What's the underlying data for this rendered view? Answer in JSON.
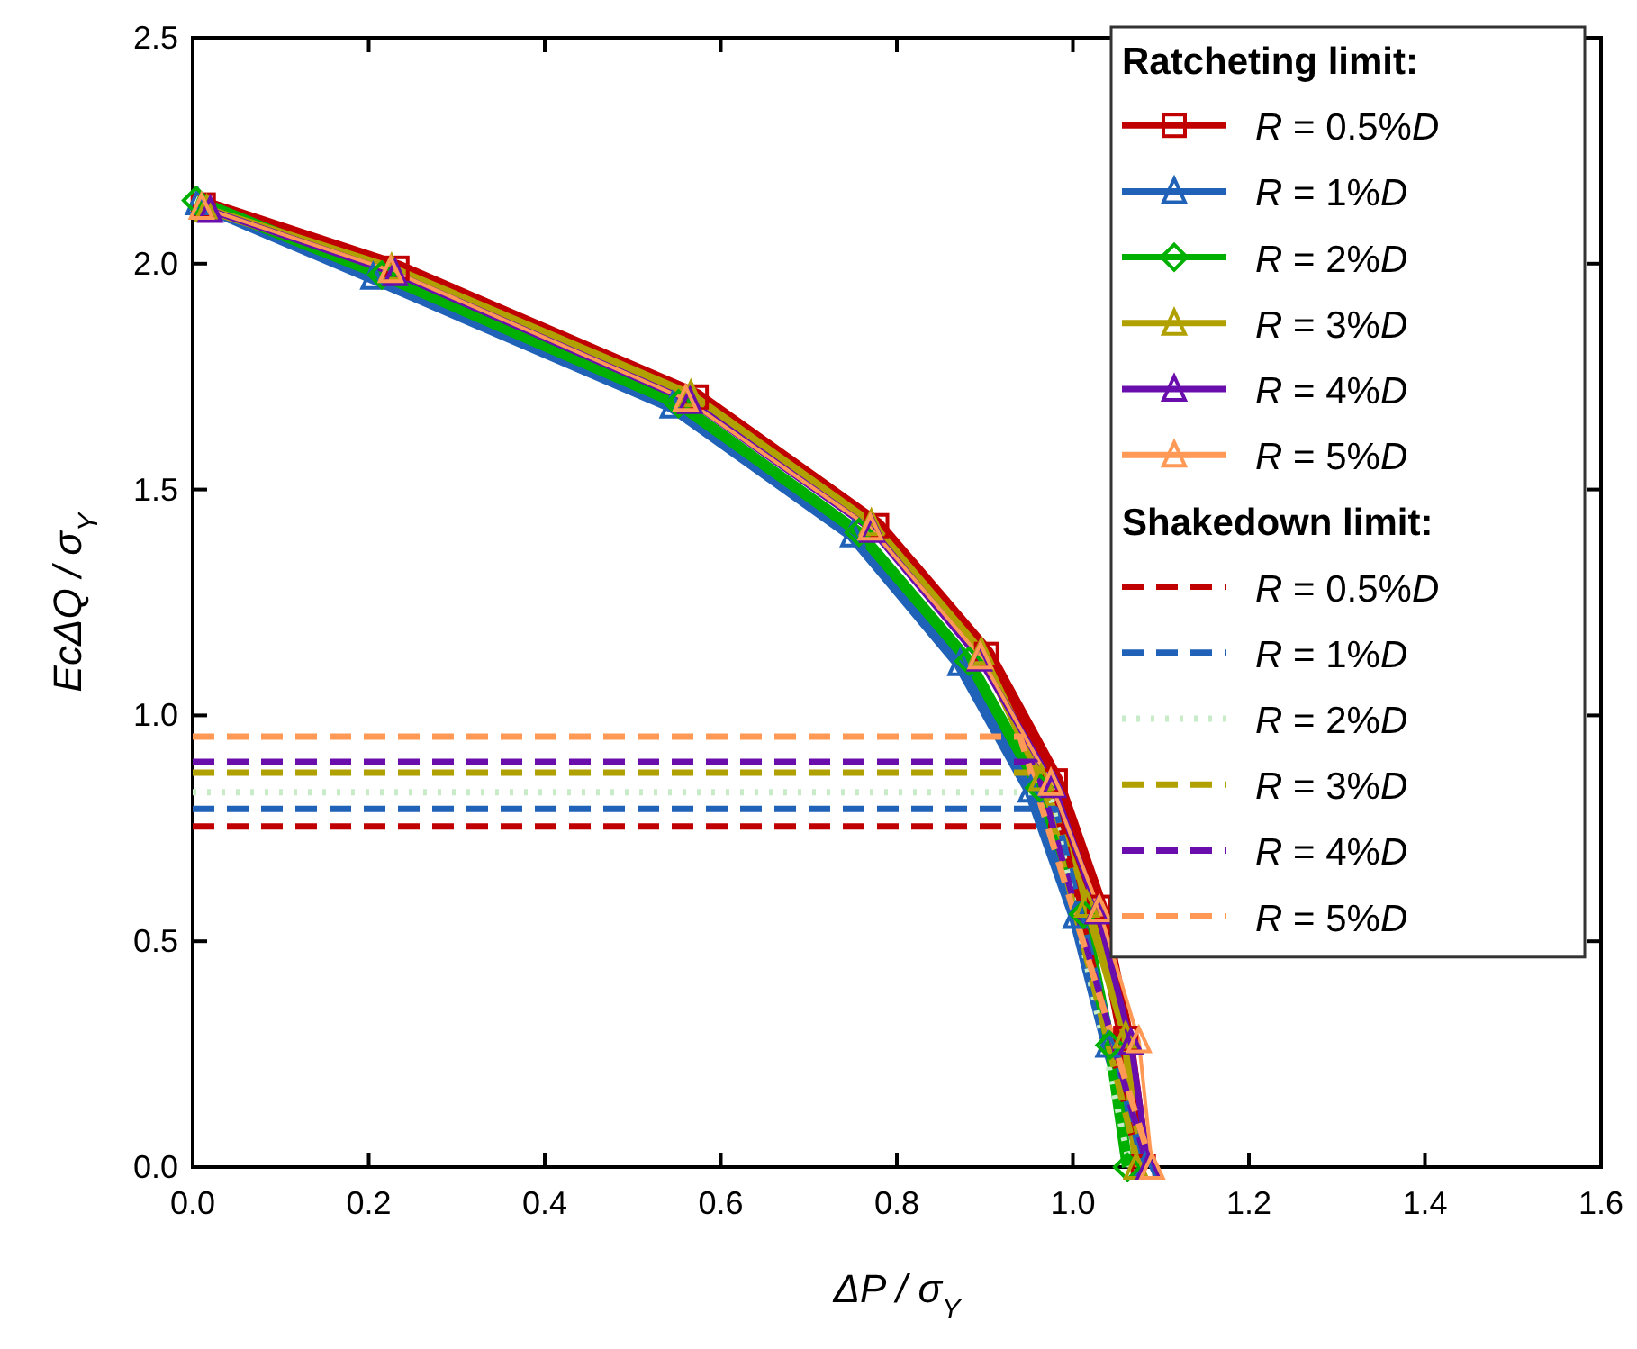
{
  "chart_data": {
    "type": "line",
    "xlabel": "ΔP / σ$_{Y}$",
    "ylabel": "EcΔQ / σ$_{Y}$",
    "xlim": [
      0,
      1.6
    ],
    "ylim": [
      0,
      2.5
    ],
    "xticks": [
      {
        "value": 0,
        "label": "0.0"
      },
      0.2,
      0.4,
      0.6,
      0.8,
      {
        "value": 1,
        "label": "1.0"
      },
      1.2,
      1.4,
      1.6
    ],
    "yticks": [
      {
        "value": 0,
        "label": "0.0"
      },
      0.5,
      {
        "value": 1,
        "label": "1.0"
      },
      1.5,
      {
        "value": 2,
        "label": "2.0"
      },
      2.5
    ],
    "grid": false,
    "legend": "top right",
    "legend_title": "Ratcheting limit:",
    "annotations": [
      "Shakedown limit:"
    ],
    "series": [
      {
        "name": "R = 0.5%D",
        "color": "#c00000",
        "marker": "square",
        "line_style": "solid",
        "x": [
          0.012,
          0.232,
          0.572,
          0.777,
          0.902,
          0.98,
          1.03,
          1.06,
          1.08
        ],
        "values": [
          2.13,
          1.99,
          1.705,
          1.42,
          1.135,
          0.855,
          0.575,
          0.285,
          0
        ]
      },
      {
        "name": "R = 1%D",
        "color": "#1f62b8",
        "marker": "triangle",
        "line_style": "solid",
        "x": [
          0.006,
          0.205,
          0.545,
          0.75,
          0.872,
          0.952,
          1.003,
          1.04,
          1.082
        ],
        "values": [
          2.135,
          1.97,
          1.685,
          1.4,
          1.115,
          0.835,
          0.555,
          0.27,
          0
        ]
      },
      {
        "name": "R = 2%D",
        "color": "#00b000",
        "marker": "diamond",
        "line_style": "solid",
        "x": [
          0.004,
          0.215,
          0.552,
          0.757,
          0.882,
          0.962,
          1.012,
          1.042,
          1.062
        ],
        "values": [
          2.14,
          1.975,
          1.69,
          1.405,
          1.12,
          0.84,
          0.56,
          0.27,
          0
        ]
      },
      {
        "name": "R = 3%D",
        "color": "#b0a000",
        "marker": "triangle",
        "line_style": "solid",
        "x": [
          0.016,
          0.226,
          0.566,
          0.771,
          0.896,
          0.964,
          1.016,
          1.06,
          1.072
        ],
        "values": [
          2.12,
          1.99,
          1.71,
          1.425,
          1.14,
          0.86,
          0.58,
          0.29,
          0
        ]
      },
      {
        "name": "R = 4%D",
        "color": "#6a0dad",
        "marker": "triangle",
        "line_style": "solid",
        "x": [
          0.02,
          0.23,
          0.565,
          0.772,
          0.894,
          0.978,
          1.028,
          1.066,
          1.086
        ],
        "values": [
          2.118,
          1.978,
          1.695,
          1.41,
          1.125,
          0.845,
          0.565,
          0.275,
          0
        ]
      },
      {
        "name": "R = 5%D",
        "color": "#ff9955",
        "marker": "triangle",
        "line_style": "solid",
        "x": [
          0.01,
          0.225,
          0.56,
          0.77,
          0.895,
          0.975,
          1.03,
          1.075,
          1.09
        ],
        "values": [
          2.125,
          1.985,
          1.7,
          1.415,
          1.13,
          0.85,
          0.57,
          0.28,
          0
        ]
      },
      {
        "name": "R = 0.5%D",
        "color": "#c00000",
        "marker": "none",
        "line_style": "dashed",
        "x": [
          0,
          0.987,
          1.075
        ],
        "values": [
          0.754,
          0.754,
          0
        ]
      },
      {
        "name": "R = 1%D",
        "color": "#1f62b8",
        "marker": "none",
        "line_style": "dashed",
        "x": [
          0,
          0.98,
          1.08
        ],
        "values": [
          0.793,
          0.793,
          0
        ]
      },
      {
        "name": "R = 2%D",
        "color": "#c8ecc8",
        "marker": "none",
        "line_style": "dotted",
        "x": [
          0,
          0.974,
          1.065
        ],
        "values": [
          0.83,
          0.83,
          0
        ]
      },
      {
        "name": "R = 3%D",
        "color": "#b0a000",
        "marker": "none",
        "line_style": "dashed",
        "x": [
          0,
          0.963,
          1.075
        ],
        "values": [
          0.873,
          0.873,
          0
        ]
      },
      {
        "name": "R = 4%D",
        "color": "#6a0dad",
        "marker": "none",
        "line_style": "dashed",
        "x": [
          0,
          0.957,
          1.085
        ],
        "values": [
          0.897,
          0.897,
          0
        ]
      },
      {
        "name": "R = 5%D",
        "color": "#ff9955",
        "marker": "none",
        "line_style": "dashed",
        "x": [
          0,
          0.94,
          1.09
        ],
        "values": [
          0.953,
          0.953,
          0
        ]
      }
    ]
  }
}
